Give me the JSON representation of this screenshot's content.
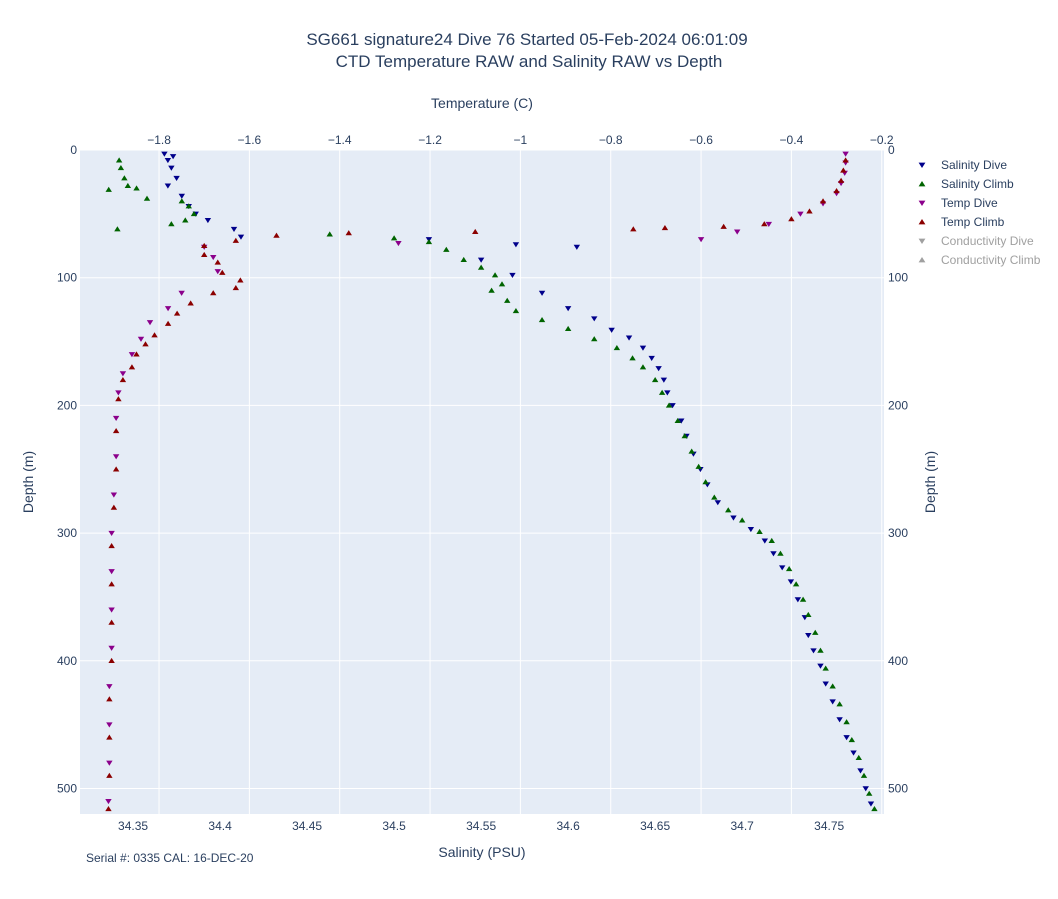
{
  "chart_data": {
    "type": "scatter",
    "title_line1": "SG661 signature24 Dive 76 Started 05-Feb-2024 06:01:09",
    "title_line2": "CTD Temperature RAW and Salinity RAW vs Depth",
    "xlabel_bottom": "Salinity (PSU)",
    "xlabel_top": "Temperature (C)",
    "ylabel_left": "Depth (m)",
    "ylabel_right": "Depth (m)",
    "footer": "Serial #: 0335  CAL: 16-DEC-20",
    "salinity_axis": {
      "range": [
        34.3195,
        34.7815
      ],
      "ticks": [
        "34.35",
        "34.4",
        "34.45",
        "34.5",
        "34.55",
        "34.6",
        "34.65",
        "34.7",
        "34.75"
      ]
    },
    "temperature_axis": {
      "range": [
        -1.975,
        -0.195
      ],
      "ticks": [
        "−1.8",
        "−1.6",
        "−1.4",
        "−1.2",
        "−1",
        "−0.8",
        "−0.6",
        "−0.4",
        "−0.2"
      ]
    },
    "depth_axis": {
      "range": [
        0,
        520
      ],
      "reversed": true,
      "ticks": [
        "0",
        "100",
        "200",
        "300",
        "400",
        "500"
      ]
    },
    "grid": true,
    "legend_position": "right",
    "series": [
      {
        "name": "Salinity Dive",
        "axis": "salinity",
        "marker": "triangle-down",
        "color": "#00008b",
        "visible": true,
        "points": [
          [
            34.368,
            3
          ],
          [
            34.373,
            5
          ],
          [
            34.37,
            8
          ],
          [
            34.372,
            14
          ],
          [
            34.375,
            22
          ],
          [
            34.37,
            28
          ],
          [
            34.378,
            36
          ],
          [
            34.382,
            44
          ],
          [
            34.386,
            50
          ],
          [
            34.393,
            55
          ],
          [
            34.408,
            62
          ],
          [
            34.412,
            68
          ],
          [
            34.52,
            70
          ],
          [
            34.57,
            74
          ],
          [
            34.605,
            76
          ],
          [
            34.55,
            86
          ],
          [
            34.568,
            98
          ],
          [
            34.585,
            112
          ],
          [
            34.6,
            124
          ],
          [
            34.615,
            132
          ],
          [
            34.625,
            141
          ],
          [
            34.635,
            147
          ],
          [
            34.643,
            155
          ],
          [
            34.648,
            163
          ],
          [
            34.652,
            171
          ],
          [
            34.655,
            180
          ],
          [
            34.657,
            190
          ],
          [
            34.66,
            200
          ],
          [
            34.665,
            212
          ],
          [
            34.668,
            224
          ],
          [
            34.672,
            238
          ],
          [
            34.676,
            250
          ],
          [
            34.68,
            262
          ],
          [
            34.686,
            276
          ],
          [
            34.695,
            288
          ],
          [
            34.705,
            297
          ],
          [
            34.713,
            306
          ],
          [
            34.718,
            316
          ],
          [
            34.723,
            327
          ],
          [
            34.728,
            338
          ],
          [
            34.732,
            352
          ],
          [
            34.736,
            366
          ],
          [
            34.738,
            380
          ],
          [
            34.741,
            392
          ],
          [
            34.745,
            404
          ],
          [
            34.748,
            418
          ],
          [
            34.752,
            432
          ],
          [
            34.756,
            446
          ],
          [
            34.76,
            460
          ],
          [
            34.764,
            472
          ],
          [
            34.768,
            486
          ],
          [
            34.771,
            500
          ],
          [
            34.774,
            512
          ]
        ]
      },
      {
        "name": "Salinity Climb",
        "axis": "salinity",
        "marker": "triangle-up",
        "color": "#006400",
        "visible": true,
        "points": [
          [
            34.342,
            8
          ],
          [
            34.343,
            14
          ],
          [
            34.345,
            22
          ],
          [
            34.347,
            28
          ],
          [
            34.336,
            31
          ],
          [
            34.352,
            30
          ],
          [
            34.358,
            38
          ],
          [
            34.378,
            40
          ],
          [
            34.382,
            44
          ],
          [
            34.385,
            50
          ],
          [
            34.38,
            55
          ],
          [
            34.372,
            58
          ],
          [
            34.341,
            62
          ],
          [
            34.463,
            66
          ],
          [
            34.5,
            69
          ],
          [
            34.52,
            72
          ],
          [
            34.53,
            78
          ],
          [
            34.54,
            86
          ],
          [
            34.55,
            92
          ],
          [
            34.558,
            98
          ],
          [
            34.562,
            105
          ],
          [
            34.556,
            110
          ],
          [
            34.565,
            118
          ],
          [
            34.57,
            126
          ],
          [
            34.585,
            133
          ],
          [
            34.6,
            140
          ],
          [
            34.615,
            148
          ],
          [
            34.628,
            155
          ],
          [
            34.637,
            163
          ],
          [
            34.643,
            170
          ],
          [
            34.65,
            180
          ],
          [
            34.654,
            190
          ],
          [
            34.658,
            200
          ],
          [
            34.663,
            212
          ],
          [
            34.667,
            224
          ],
          [
            34.671,
            236
          ],
          [
            34.675,
            248
          ],
          [
            34.679,
            260
          ],
          [
            34.684,
            272
          ],
          [
            34.692,
            282
          ],
          [
            34.7,
            290
          ],
          [
            34.71,
            299
          ],
          [
            34.717,
            306
          ],
          [
            34.722,
            316
          ],
          [
            34.727,
            328
          ],
          [
            34.731,
            340
          ],
          [
            34.735,
            352
          ],
          [
            34.738,
            364
          ],
          [
            34.742,
            378
          ],
          [
            34.745,
            392
          ],
          [
            34.748,
            406
          ],
          [
            34.752,
            420
          ],
          [
            34.756,
            434
          ],
          [
            34.76,
            448
          ],
          [
            34.763,
            462
          ],
          [
            34.767,
            476
          ],
          [
            34.77,
            490
          ],
          [
            34.773,
            504
          ],
          [
            34.776,
            516
          ]
        ]
      },
      {
        "name": "Temp Dive",
        "axis": "temperature",
        "marker": "triangle-down",
        "color": "#8b008b",
        "visible": true,
        "points": [
          [
            -0.28,
            3
          ],
          [
            -0.28,
            10
          ],
          [
            -0.282,
            18
          ],
          [
            -0.29,
            26
          ],
          [
            -0.3,
            34
          ],
          [
            -0.33,
            42
          ],
          [
            -0.38,
            50
          ],
          [
            -0.45,
            58
          ],
          [
            -0.52,
            64
          ],
          [
            -0.6,
            70
          ],
          [
            -1.27,
            73
          ],
          [
            -1.7,
            76
          ],
          [
            -1.68,
            84
          ],
          [
            -1.67,
            95
          ],
          [
            -1.75,
            112
          ],
          [
            -1.78,
            124
          ],
          [
            -1.82,
            135
          ],
          [
            -1.84,
            148
          ],
          [
            -1.86,
            160
          ],
          [
            -1.88,
            175
          ],
          [
            -1.89,
            190
          ],
          [
            -1.895,
            210
          ],
          [
            -1.895,
            240
          ],
          [
            -1.9,
            270
          ],
          [
            -1.905,
            300
          ],
          [
            -1.905,
            330
          ],
          [
            -1.905,
            360
          ],
          [
            -1.905,
            390
          ],
          [
            -1.91,
            420
          ],
          [
            -1.91,
            450
          ],
          [
            -1.91,
            480
          ],
          [
            -1.912,
            510
          ]
        ]
      },
      {
        "name": "Temp Climb",
        "axis": "temperature",
        "marker": "triangle-up",
        "color": "#8b0000",
        "visible": true,
        "points": [
          [
            -0.28,
            8
          ],
          [
            -0.285,
            16
          ],
          [
            -0.29,
            24
          ],
          [
            -0.3,
            32
          ],
          [
            -0.33,
            40
          ],
          [
            -0.36,
            48
          ],
          [
            -0.4,
            54
          ],
          [
            -0.46,
            58
          ],
          [
            -0.55,
            60
          ],
          [
            -0.68,
            61
          ],
          [
            -0.75,
            62
          ],
          [
            -1.1,
            64
          ],
          [
            -1.38,
            65
          ],
          [
            -1.54,
            67
          ],
          [
            -1.63,
            71
          ],
          [
            -1.7,
            75
          ],
          [
            -1.7,
            82
          ],
          [
            -1.67,
            88
          ],
          [
            -1.66,
            96
          ],
          [
            -1.62,
            102
          ],
          [
            -1.63,
            108
          ],
          [
            -1.68,
            112
          ],
          [
            -1.73,
            120
          ],
          [
            -1.76,
            128
          ],
          [
            -1.78,
            136
          ],
          [
            -1.81,
            145
          ],
          [
            -1.83,
            152
          ],
          [
            -1.85,
            160
          ],
          [
            -1.86,
            170
          ],
          [
            -1.88,
            180
          ],
          [
            -1.89,
            195
          ],
          [
            -1.895,
            220
          ],
          [
            -1.895,
            250
          ],
          [
            -1.9,
            280
          ],
          [
            -1.905,
            310
          ],
          [
            -1.905,
            340
          ],
          [
            -1.905,
            370
          ],
          [
            -1.905,
            400
          ],
          [
            -1.91,
            430
          ],
          [
            -1.91,
            460
          ],
          [
            -1.91,
            490
          ],
          [
            -1.912,
            516
          ]
        ]
      },
      {
        "name": "Conductivity Dive",
        "axis": "none",
        "marker": "triangle-down",
        "color": "#a0a0a0",
        "visible": false,
        "points": []
      },
      {
        "name": "Conductivity Climb",
        "axis": "none",
        "marker": "triangle-up",
        "color": "#a0a0a0",
        "visible": false,
        "points": []
      }
    ]
  }
}
